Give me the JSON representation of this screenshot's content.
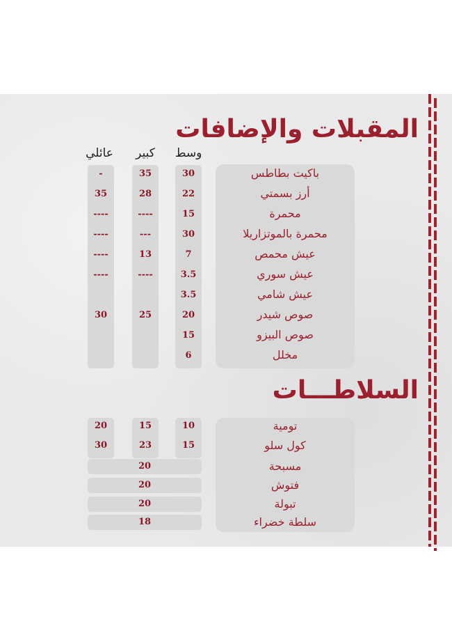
{
  "appetizers": {
    "title": "المقبلات والإضافات",
    "headers": {
      "medium": "وسط",
      "large": "كبير",
      "family": "عائلي"
    },
    "items": [
      {
        "name": "باكيت بطاطس",
        "medium": "30",
        "large": "35",
        "family": "-"
      },
      {
        "name": "أرز بسمتي",
        "medium": "22",
        "large": "28",
        "family": "35"
      },
      {
        "name": "محمرة",
        "medium": "15",
        "large": "----",
        "family": "----"
      },
      {
        "name": "محمرة بالموتزاريلا",
        "medium": "30",
        "large": "---",
        "family": "----"
      },
      {
        "name": "عيش محمص",
        "medium": "7",
        "large": "13",
        "family": "----"
      },
      {
        "name": "عيش سوري",
        "medium": "3.5",
        "large": "----",
        "family": "----"
      },
      {
        "name": "عيش شامي",
        "medium": "3.5",
        "large": "",
        "family": ""
      },
      {
        "name": "صوص شيدر",
        "medium": "20",
        "large": "25",
        "family": "30"
      },
      {
        "name": "صوص البيزو",
        "medium": "15",
        "large": "",
        "family": ""
      },
      {
        "name": "مخلل",
        "medium": "6",
        "large": "",
        "family": ""
      }
    ]
  },
  "salads": {
    "title": "السلاطـــات",
    "items": [
      {
        "name": "تومية",
        "medium": "10",
        "large": "15",
        "family": "20"
      },
      {
        "name": "كول سلو",
        "medium": "15",
        "large": "23",
        "family": "30"
      },
      {
        "name": "مسبحة",
        "price": "20"
      },
      {
        "name": "فتوش",
        "price": "20"
      },
      {
        "name": "تبولة",
        "price": "20"
      },
      {
        "name": "سلطة خضراء",
        "price": "18"
      }
    ]
  },
  "colors": {
    "accent": "#9b1f2d",
    "background": "#e9e9e9"
  }
}
